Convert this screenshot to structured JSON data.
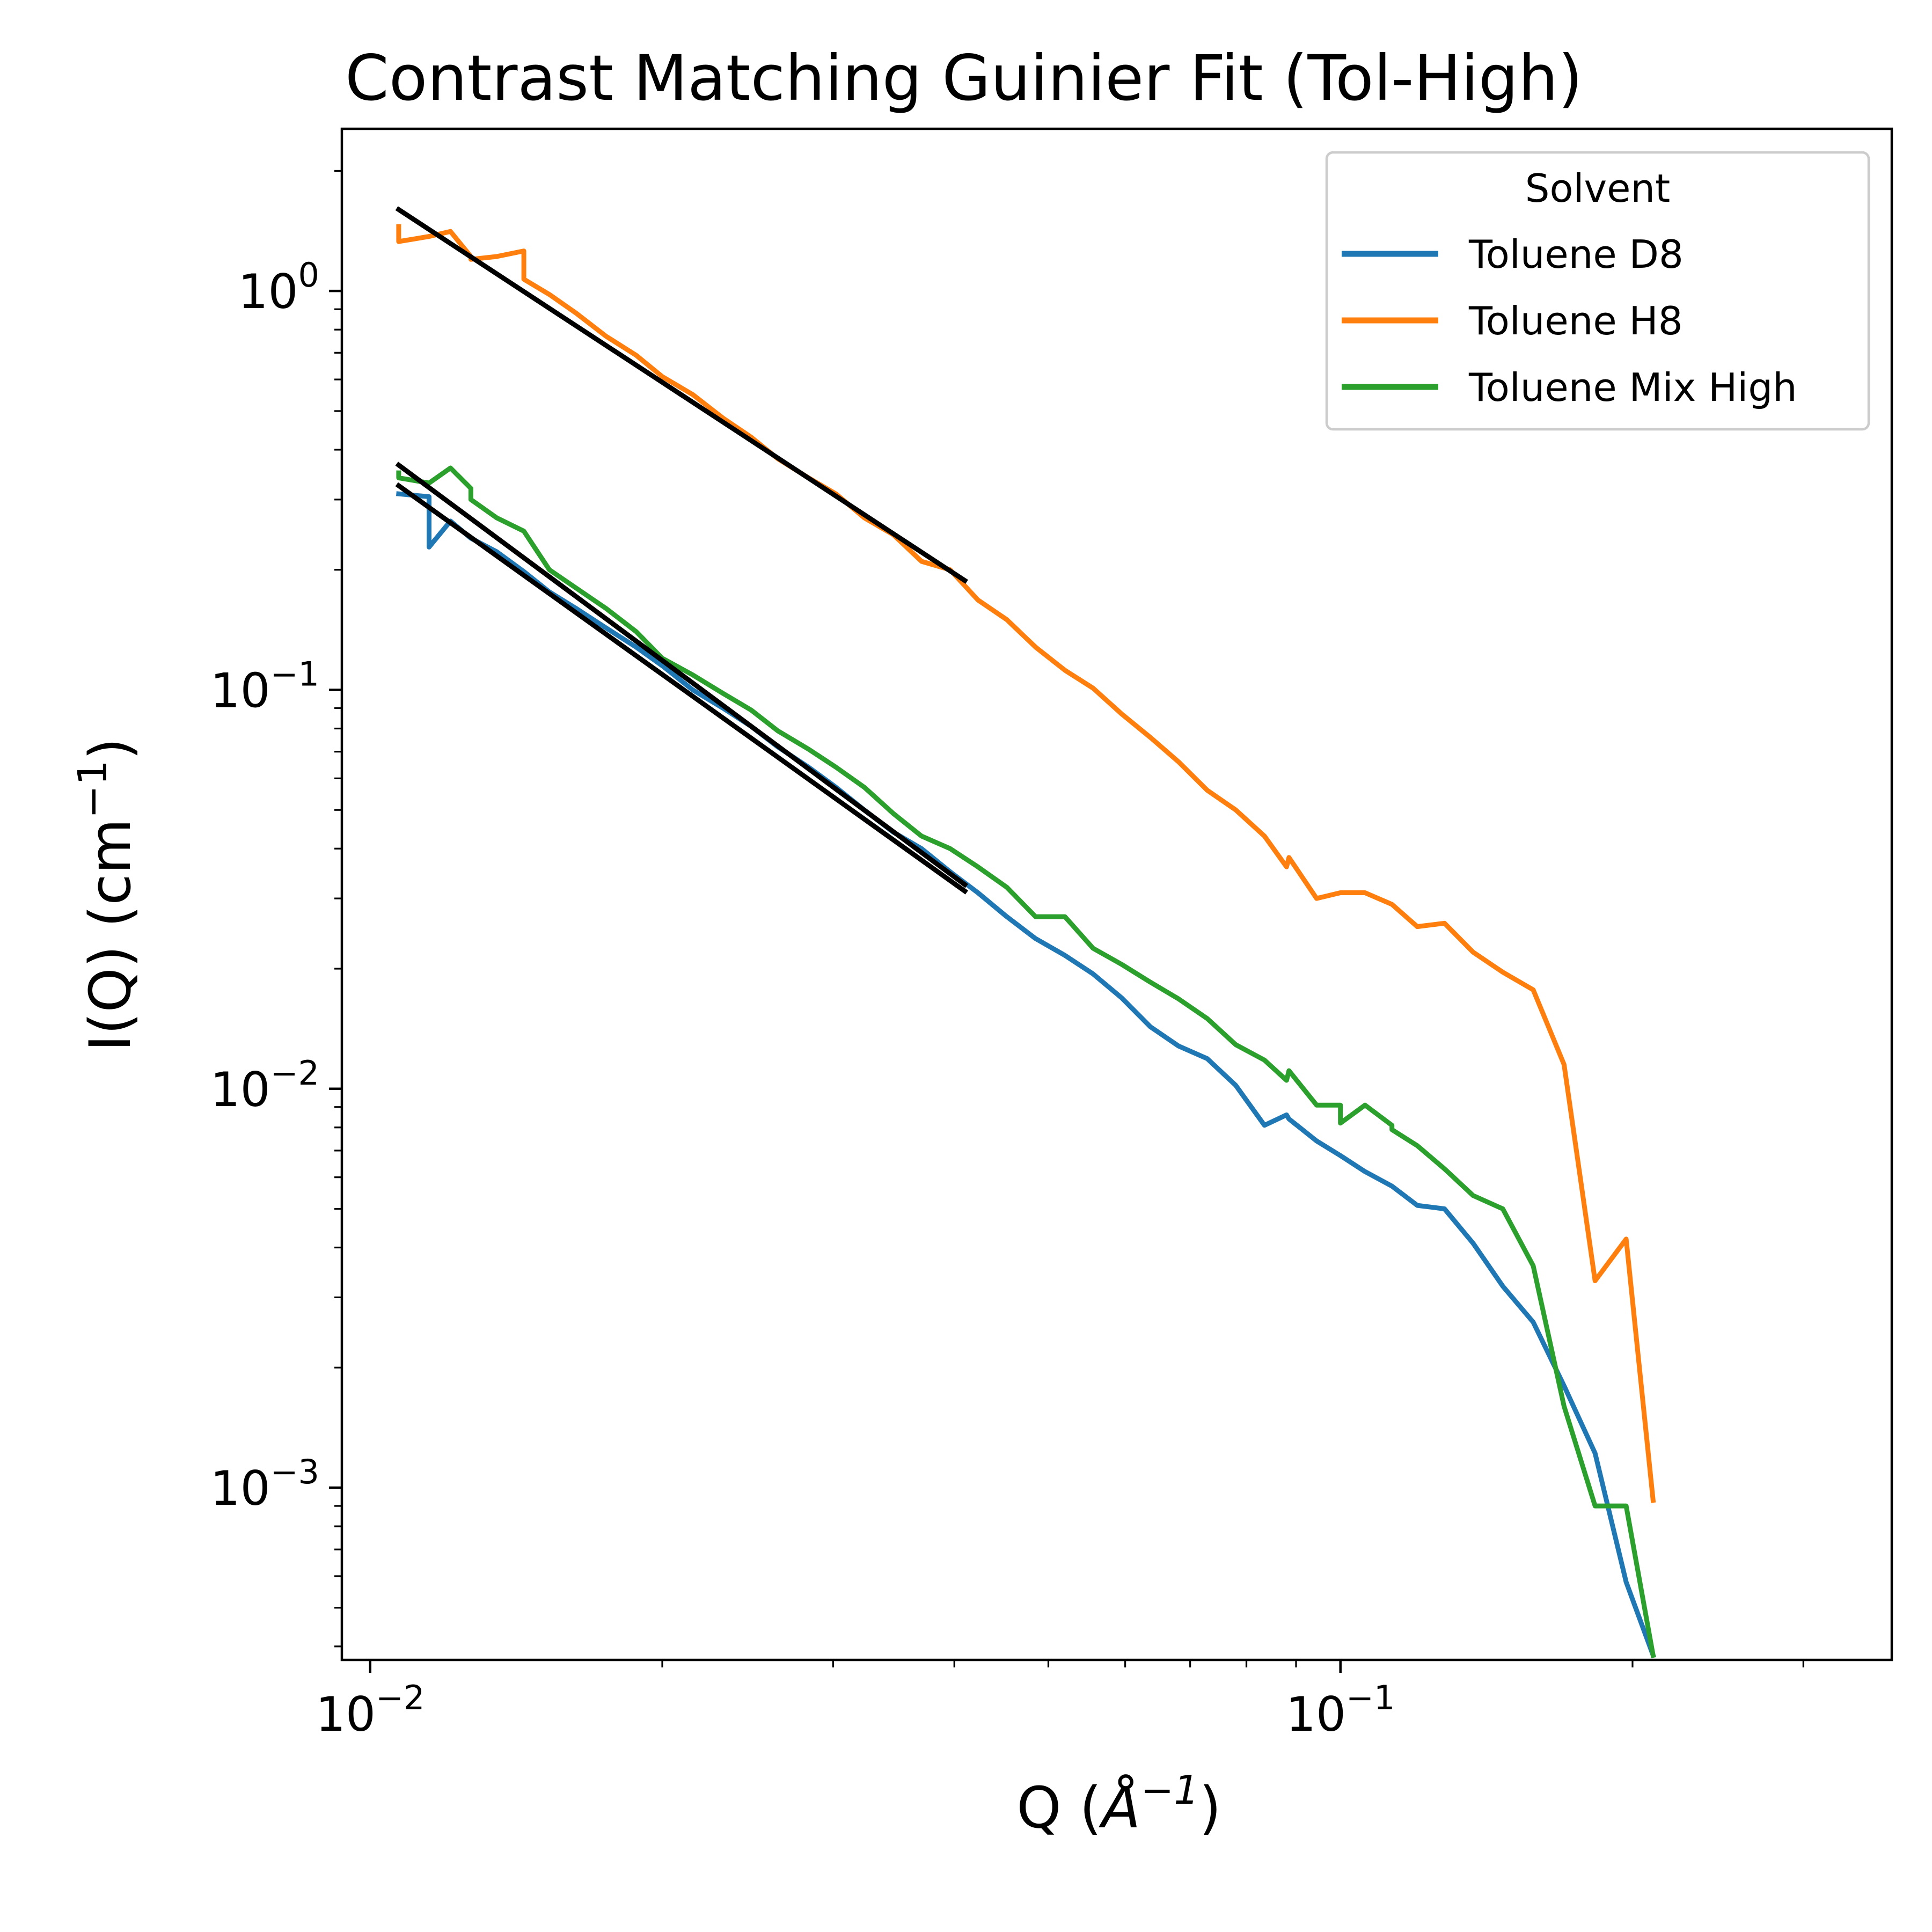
{
  "chart_data": {
    "type": "line",
    "title": "Contrast Matching Guinier Fit (Tol-High)",
    "xlabel_main": "Q (",
    "xlabel_symbol": "Å",
    "xlabel_exp": "−1",
    "xlabel_close": ")",
    "ylabel_main": "I(Q) (cm",
    "ylabel_exp": "−1",
    "ylabel_close": ")",
    "xscale": "log",
    "yscale": "log",
    "xlim": [
      0.00935,
      0.37
    ],
    "ylim": [
      0.00037,
      2.55
    ],
    "x_ticks": [
      {
        "base": "10",
        "exp": "−2",
        "value": 0.01
      },
      {
        "base": "10",
        "exp": "−1",
        "value": 0.1
      }
    ],
    "y_ticks": [
      {
        "base": "10",
        "exp": "0",
        "value": 1
      },
      {
        "base": "10",
        "exp": "−1",
        "value": 0.1
      },
      {
        "base": "10",
        "exp": "−2",
        "value": 0.01
      },
      {
        "base": "10",
        "exp": "−3",
        "value": 0.001
      }
    ],
    "grid": false,
    "legend": {
      "title": "Solvent",
      "placement": "top-right",
      "entries": [
        "Toluene D8",
        "Toluene H8",
        "Toluene Mix High"
      ]
    },
    "series": [
      {
        "name": "Toluene D8",
        "color": "#1f77b4",
        "x": [
          0.0107,
          0.0115,
          0.0115,
          0.0121,
          0.0127,
          0.0135,
          0.0144,
          0.0153,
          0.0163,
          0.0175,
          0.0188,
          0.02,
          0.0215,
          0.0231,
          0.0247,
          0.0263,
          0.0283,
          0.0302,
          0.0323,
          0.0346,
          0.037,
          0.0396,
          0.0423,
          0.0453,
          0.0485,
          0.052,
          0.0556,
          0.0595,
          0.0637,
          0.0681,
          0.0729,
          0.078,
          0.0835,
          0.088,
          0.0885,
          0.0945,
          0.1,
          0.106,
          0.113,
          0.12,
          0.128,
          0.137,
          0.147,
          0.158,
          0.17,
          0.183,
          0.197,
          0.21,
          0.21
        ],
        "y": [
          0.31,
          0.305,
          0.228,
          0.265,
          0.24,
          0.222,
          0.198,
          0.176,
          0.16,
          0.143,
          0.128,
          0.115,
          0.1,
          0.09,
          0.081,
          0.072,
          0.064,
          0.057,
          0.05,
          0.044,
          0.04,
          0.035,
          0.031,
          0.027,
          0.0238,
          0.0216,
          0.0194,
          0.0169,
          0.0143,
          0.0128,
          0.0119,
          0.0102,
          0.0081,
          0.0086,
          0.0084,
          0.0074,
          0.0068,
          0.0062,
          0.0057,
          0.0051,
          0.005,
          0.0041,
          0.0032,
          0.0026,
          0.0018,
          0.00122,
          0.00058,
          0.00038,
          0.00038
        ]
      },
      {
        "name": "Toluene H8",
        "color": "#ff7f0e",
        "x": [
          0.0107,
          0.0107,
          0.0115,
          0.0121,
          0.0127,
          0.0127,
          0.0135,
          0.0144,
          0.0144,
          0.0153,
          0.0163,
          0.0175,
          0.0188,
          0.02,
          0.0215,
          0.0231,
          0.0247,
          0.0263,
          0.0283,
          0.0302,
          0.0323,
          0.0346,
          0.037,
          0.0396,
          0.0423,
          0.0453,
          0.0485,
          0.052,
          0.0556,
          0.0595,
          0.0637,
          0.0681,
          0.0729,
          0.078,
          0.0835,
          0.088,
          0.0885,
          0.0945,
          0.1,
          0.106,
          0.106,
          0.113,
          0.12,
          0.128,
          0.137,
          0.147,
          0.158,
          0.17,
          0.183,
          0.197,
          0.197,
          0.21,
          0.21
        ],
        "y": [
          1.45,
          1.33,
          1.37,
          1.41,
          1.22,
          1.2,
          1.22,
          1.26,
          1.07,
          0.98,
          0.88,
          0.77,
          0.69,
          0.61,
          0.55,
          0.48,
          0.43,
          0.38,
          0.34,
          0.31,
          0.27,
          0.245,
          0.21,
          0.2,
          0.168,
          0.15,
          0.128,
          0.112,
          0.101,
          0.087,
          0.076,
          0.066,
          0.056,
          0.05,
          0.043,
          0.036,
          0.038,
          0.03,
          0.031,
          0.031,
          0.031,
          0.029,
          0.0255,
          0.026,
          0.022,
          0.0196,
          0.0177,
          0.0115,
          0.0033,
          0.0042,
          0.0042,
          0.00093,
          0.00093
        ]
      },
      {
        "name": "Toluene Mix High",
        "color": "#2ca02c",
        "x": [
          0.0107,
          0.0107,
          0.0115,
          0.0121,
          0.0127,
          0.0127,
          0.0135,
          0.0144,
          0.0153,
          0.0163,
          0.0175,
          0.0188,
          0.02,
          0.0215,
          0.0231,
          0.0247,
          0.0263,
          0.0283,
          0.0302,
          0.0323,
          0.0346,
          0.037,
          0.0396,
          0.0423,
          0.0453,
          0.0485,
          0.052,
          0.0556,
          0.0595,
          0.0637,
          0.0681,
          0.0729,
          0.078,
          0.0835,
          0.088,
          0.0885,
          0.0945,
          0.1,
          0.1,
          0.106,
          0.113,
          0.113,
          0.12,
          0.128,
          0.137,
          0.147,
          0.158,
          0.17,
          0.183,
          0.197,
          0.21,
          0.21
        ],
        "y": [
          0.35,
          0.34,
          0.33,
          0.36,
          0.32,
          0.3,
          0.27,
          0.25,
          0.2,
          0.18,
          0.16,
          0.14,
          0.12,
          0.109,
          0.098,
          0.089,
          0.079,
          0.071,
          0.064,
          0.057,
          0.049,
          0.043,
          0.04,
          0.036,
          0.032,
          0.027,
          0.027,
          0.0225,
          0.0205,
          0.0185,
          0.0168,
          0.015,
          0.0129,
          0.0118,
          0.0105,
          0.0111,
          0.0091,
          0.0091,
          0.0082,
          0.0091,
          0.0081,
          0.0079,
          0.0072,
          0.0063,
          0.0054,
          0.005,
          0.0036,
          0.0016,
          0.0009,
          0.0009,
          0.00038,
          0.00038
        ]
      }
    ],
    "fits": [
      {
        "color": "#000000",
        "x": [
          0.0107,
          0.041
        ],
        "y": [
          1.6,
          0.188
        ]
      },
      {
        "color": "#000000",
        "x": [
          0.0107,
          0.041
        ],
        "y": [
          0.366,
          0.0325
        ]
      },
      {
        "color": "#000000",
        "x": [
          0.0107,
          0.041
        ],
        "y": [
          0.325,
          0.0313
        ]
      }
    ]
  }
}
